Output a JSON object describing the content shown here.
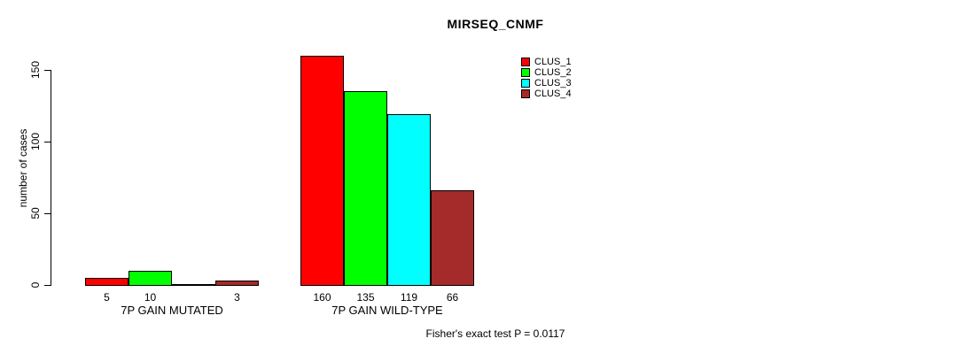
{
  "title": "MIRSEQ_CNMF",
  "y_axis_label": "number of cases",
  "footer": "Fisher's exact test P = 0.0117",
  "chart_data": {
    "type": "bar",
    "title": "MIRSEQ_CNMF",
    "xlabel": "",
    "ylabel": "number of cases",
    "ylim": [
      0,
      160
    ],
    "yticks": [
      0,
      50,
      100,
      150
    ],
    "grid": false,
    "legend_position": "top-right",
    "categories": [
      "7P GAIN MUTATED",
      "7P GAIN WILD-TYPE"
    ],
    "series": [
      {
        "name": "CLUS_1",
        "color": "#ff0000",
        "values": [
          5,
          160
        ]
      },
      {
        "name": "CLUS_2",
        "color": "#00ff00",
        "values": [
          10,
          135
        ]
      },
      {
        "name": "CLUS_3",
        "color": "#00ffff",
        "values": [
          0,
          119
        ]
      },
      {
        "name": "CLUS_4",
        "color": "#a52a2a",
        "values": [
          3,
          66
        ]
      }
    ],
    "bar_value_labels": [
      [
        "5",
        "10",
        "",
        "3"
      ],
      [
        "160",
        "135",
        "119",
        "66"
      ]
    ],
    "annotation": "Fisher's exact test P = 0.0117"
  }
}
